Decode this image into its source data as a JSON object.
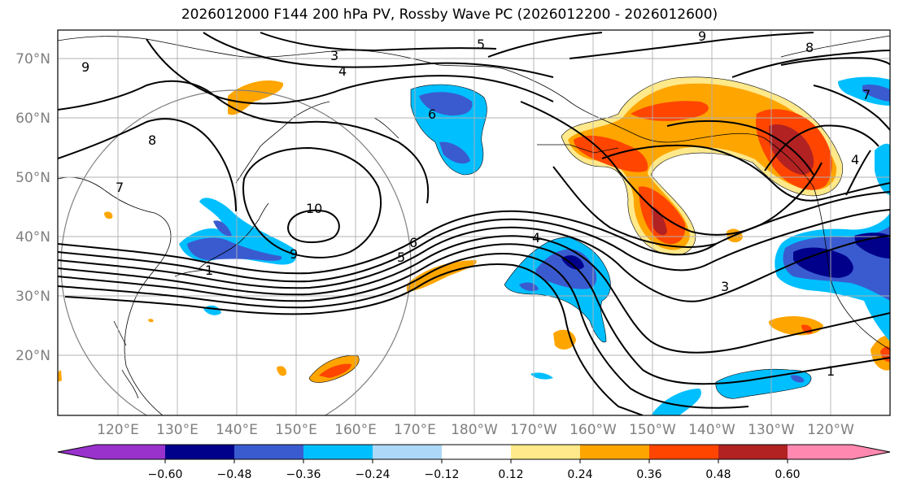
{
  "title": "2026012000 F144 200 hPa PV, Rossby Wave PC (2026012200 - 2026012600)",
  "lat_labels": [
    "70°N",
    "60°N",
    "50°N",
    "40°N",
    "30°N",
    "20°N"
  ],
  "lon_labels": [
    "120°E",
    "130°E",
    "140°E",
    "150°E",
    "160°E",
    "170°E",
    "180°W",
    "170°W",
    "160°W",
    "150°W",
    "140°W",
    "130°W",
    "120°W"
  ],
  "colorbar": {
    "colors": [
      "#9932cc",
      "#00008b",
      "#3a5bd0",
      "#00bfff",
      "#add8f8",
      "#ffffff",
      "#ffe98a",
      "#ffa500",
      "#ff4500",
      "#b22222",
      "#ff88b0"
    ],
    "tick_labels": [
      "−0.60",
      "−0.48",
      "−0.36",
      "−0.24",
      "−0.12",
      "0.12",
      "0.24",
      "0.36",
      "0.48",
      "0.60"
    ]
  },
  "contour_labels": [
    "9",
    "3",
    "4",
    "5",
    "9",
    "8",
    "8",
    "7",
    "10",
    "9",
    "5",
    "6",
    "4",
    "3",
    "1",
    "4",
    "7",
    "6",
    "1"
  ]
}
